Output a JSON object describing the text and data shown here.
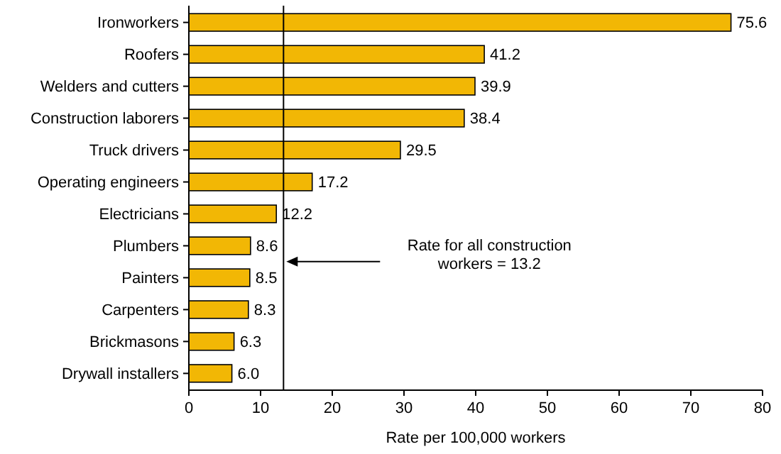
{
  "chart_data": {
    "type": "bar",
    "orientation": "horizontal",
    "xlabel": "Rate per 100,000 workers",
    "categories": [
      "Ironworkers",
      "Roofers",
      "Welders and cutters",
      "Construction laborers",
      "Truck drivers",
      "Operating engineers",
      "Electricians",
      "Plumbers",
      "Painters",
      "Carpenters",
      "Brickmasons",
      "Drywall installers"
    ],
    "values": [
      75.6,
      41.2,
      39.9,
      38.4,
      29.5,
      17.2,
      12.2,
      8.6,
      8.5,
      8.3,
      6.3,
      6.0
    ],
    "value_labels": [
      "75.6",
      "41.2",
      "39.9",
      "38.4",
      "29.5",
      "17.2",
      "12.2",
      "8.6",
      "8.5",
      "8.3",
      "6.3",
      "6.0"
    ],
    "color": "#f2b705",
    "xlim": [
      0,
      80
    ],
    "xticks": [
      0,
      10,
      20,
      30,
      40,
      50,
      60,
      70,
      80
    ],
    "ref_lines": [
      {
        "axis": "x",
        "value": 13.2,
        "label": "Rate for all construction\nworkers = 13.2"
      }
    ]
  }
}
